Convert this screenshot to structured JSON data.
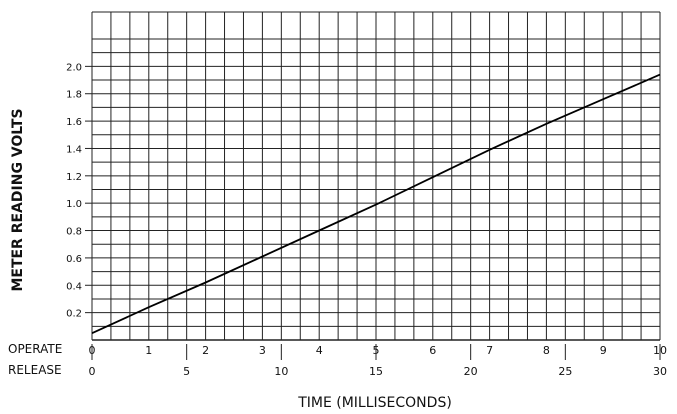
{
  "chart_data": {
    "type": "line",
    "ylabel": "METER READING VOLTS",
    "xlabel": "TIME (MILLISECONDS)",
    "ylim": [
      0,
      2.2
    ],
    "y_ticks": [
      "0.2",
      "0.4",
      "0.6",
      "0.8",
      "1.0",
      "1.2",
      "1.4",
      "1.6",
      "1.8",
      "2.0"
    ],
    "x_scales": [
      {
        "name": "OPERATE",
        "range": [
          0,
          10
        ],
        "ticks": [
          "0",
          "1",
          "2",
          "3",
          "4",
          "5",
          "6",
          "7",
          "8",
          "9",
          "10"
        ]
      },
      {
        "name": "RELEASE",
        "range": [
          0,
          30
        ],
        "ticks": [
          "0",
          "5",
          "10",
          "15",
          "20",
          "25",
          "30"
        ]
      }
    ],
    "grid": true,
    "series": [
      {
        "x": [
          0,
          1,
          2,
          3,
          4,
          5,
          6,
          7,
          8,
          9,
          10
        ],
        "y": [
          0.05,
          0.24,
          0.42,
          0.61,
          0.8,
          0.99,
          1.19,
          1.39,
          1.58,
          1.76,
          1.94
        ]
      }
    ]
  }
}
